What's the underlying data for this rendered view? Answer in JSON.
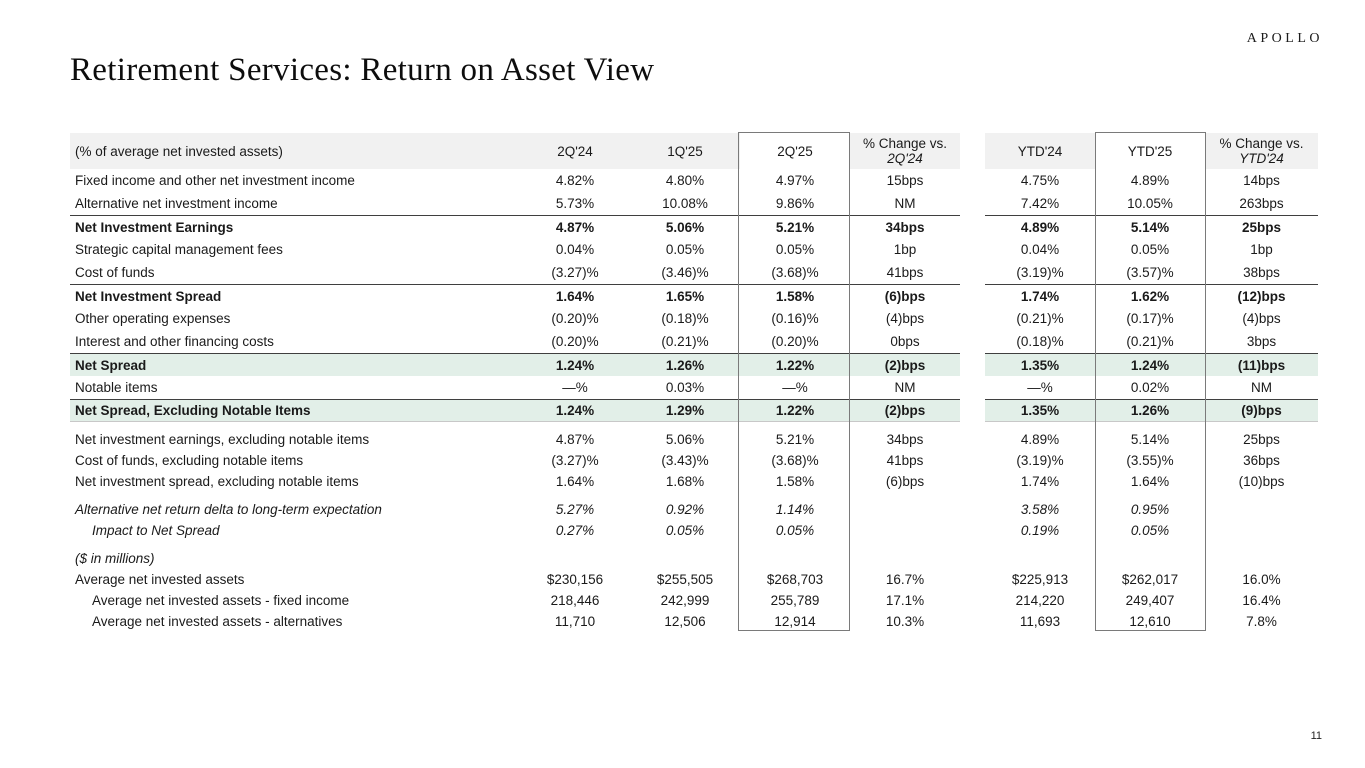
{
  "logo": "APOLLO",
  "title": "Retirement Services: Return on Asset View",
  "page_number": "11",
  "table": {
    "header": {
      "label": "(% of average net invested assets)",
      "columns": [
        {
          "label": "2Q'24"
        },
        {
          "label": "1Q'25"
        },
        {
          "label": "2Q'25",
          "boxed": true
        },
        {
          "label": "% Change vs.",
          "sublabel": "2Q'24"
        },
        {
          "label": "YTD'24"
        },
        {
          "label": "YTD'25",
          "boxed": true
        },
        {
          "label": "% Change vs.",
          "sublabel": "YTD'24"
        }
      ]
    },
    "rows": [
      {
        "label": "Fixed income and other net investment income",
        "values": [
          "4.82%",
          "4.80%",
          "4.97%",
          "15bps",
          "4.75%",
          "4.89%",
          "14bps"
        ]
      },
      {
        "label": "Alternative net investment income",
        "values": [
          "5.73%",
          "10.08%",
          "9.86%",
          "NM",
          "7.42%",
          "10.05%",
          "263bps"
        ]
      },
      {
        "label": "Net Investment Earnings",
        "values": [
          "4.87%",
          "5.06%",
          "5.21%",
          "34bps",
          "4.89%",
          "5.14%",
          "25bps"
        ],
        "bold": true,
        "rule_above": true
      },
      {
        "label": "Strategic capital management fees",
        "values": [
          "0.04%",
          "0.05%",
          "0.05%",
          "1bp",
          "0.04%",
          "0.05%",
          "1bp"
        ]
      },
      {
        "label": "Cost of funds",
        "values": [
          "(3.27)%",
          "(3.46)%",
          "(3.68)%",
          "41bps",
          "(3.19)%",
          "(3.57)%",
          "38bps"
        ]
      },
      {
        "label": "Net Investment Spread",
        "values": [
          "1.64%",
          "1.65%",
          "1.58%",
          "(6)bps",
          "1.74%",
          "1.62%",
          "(12)bps"
        ],
        "bold": true,
        "rule_above": true
      },
      {
        "label": "Other operating expenses",
        "values": [
          "(0.20)%",
          "(0.18)%",
          "(0.16)%",
          "(4)bps",
          "(0.21)%",
          "(0.17)%",
          "(4)bps"
        ]
      },
      {
        "label": "Interest and other financing costs",
        "values": [
          "(0.20)%",
          "(0.21)%",
          "(0.20)%",
          "0bps",
          "(0.18)%",
          "(0.21)%",
          "3bps"
        ]
      },
      {
        "label": "Net Spread",
        "values": [
          "1.24%",
          "1.26%",
          "1.22%",
          "(2)bps",
          "1.35%",
          "1.24%",
          "(11)bps"
        ],
        "bold": true,
        "highlight": true,
        "rule_above": true
      },
      {
        "label": "Notable items",
        "values": [
          "—%",
          "0.03%",
          "—%",
          "NM",
          "—%",
          "0.02%",
          "NM"
        ]
      },
      {
        "label": "Net Spread, Excluding Notable Items",
        "values": [
          "1.24%",
          "1.29%",
          "1.22%",
          "(2)bps",
          "1.35%",
          "1.26%",
          "(9)bps"
        ],
        "bold": true,
        "highlight": true,
        "rule_above": true,
        "rule_below": true
      },
      {
        "label": "Net investment earnings, excluding notable items",
        "values": [
          "4.87%",
          "5.06%",
          "5.21%",
          "34bps",
          "4.89%",
          "5.14%",
          "25bps"
        ],
        "gap_above": true
      },
      {
        "label": "Cost of funds, excluding notable items",
        "values": [
          "(3.27)%",
          "(3.43)%",
          "(3.68)%",
          "41bps",
          "(3.19)%",
          "(3.55)%",
          "36bps"
        ]
      },
      {
        "label": "Net investment spread, excluding notable items",
        "values": [
          "1.64%",
          "1.68%",
          "1.58%",
          "(6)bps",
          "1.74%",
          "1.64%",
          "(10)bps"
        ]
      },
      {
        "label": "Alternative net return delta to long-term expectation",
        "values": [
          "5.27%",
          "0.92%",
          "1.14%",
          "",
          "3.58%",
          "0.95%",
          ""
        ],
        "italic": true,
        "gap_above": true
      },
      {
        "label": "Impact to Net Spread",
        "values": [
          "0.27%",
          "0.05%",
          "0.05%",
          "",
          "0.19%",
          "0.05%",
          ""
        ],
        "italic": true,
        "indent": true
      },
      {
        "label": "($ in millions)",
        "values": [
          "",
          "",
          "",
          "",
          "",
          "",
          ""
        ],
        "italic": true,
        "gap_above": true
      },
      {
        "label": "Average net invested assets",
        "values": [
          "$230,156",
          "$255,505",
          "$268,703",
          "16.7%",
          "$225,913",
          "$262,017",
          "16.0%"
        ]
      },
      {
        "label": "Average net invested assets - fixed income",
        "values": [
          "218,446",
          "242,999",
          "255,789",
          "17.1%",
          "214,220",
          "249,407",
          "16.4%"
        ],
        "indent": true
      },
      {
        "label": "Average net invested assets - alternatives",
        "values": [
          "11,710",
          "12,506",
          "12,914",
          "10.3%",
          "11,693",
          "12,610",
          "7.8%"
        ],
        "indent": true
      }
    ]
  }
}
